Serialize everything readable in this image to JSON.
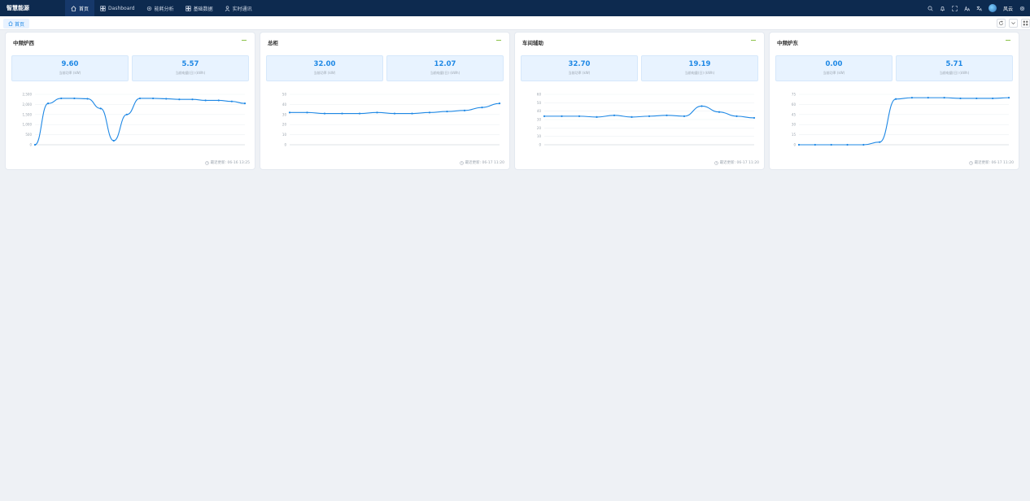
{
  "app": {
    "title": "智慧能源"
  },
  "nav": [
    {
      "label": "首页",
      "icon": "home-icon",
      "active": true
    },
    {
      "label": "Dashboard",
      "icon": "grid-icon",
      "active": false
    },
    {
      "label": "能耗分析",
      "icon": "gear-icon",
      "active": false
    },
    {
      "label": "基础数据",
      "icon": "grid-icon",
      "active": false
    },
    {
      "label": "实时通讯",
      "icon": "person-icon",
      "active": false
    }
  ],
  "topRight": {
    "icons": [
      "search-icon",
      "bell-icon",
      "fullscreen-icon",
      "font-size-icon",
      "language-icon",
      "settings-icon"
    ],
    "username": "风云"
  },
  "tabstrip": {
    "tab_label": "首页"
  },
  "colors": {
    "accent": "#1e88e5",
    "topbar": "#0d2a4f",
    "green": "#52c41a"
  },
  "cards": [
    {
      "title": "中频炉西",
      "power_value": "9.60",
      "power_label": "当前功率 (kW)",
      "energy_value": "5.57",
      "energy_label": "当前电量(日) (kWh)",
      "footer": "最近更新: 06-16 13:25",
      "chart_data": {
        "type": "line",
        "ylim": [
          0,
          2500
        ],
        "yticks": [
          "2,500",
          "2,000",
          "1,500",
          "1,000",
          "500",
          "0"
        ],
        "values": [
          0,
          2050,
          2300,
          2300,
          2280,
          1800,
          200,
          1500,
          2300,
          2300,
          2280,
          2250,
          2250,
          2200,
          2200,
          2150,
          2050
        ]
      }
    },
    {
      "title": "总柜",
      "power_value": "32.00",
      "power_label": "当前功率 (kW)",
      "energy_value": "12.07",
      "energy_label": "当前电量(日) (kWh)",
      "footer": "最近更新: 06-17 11:20",
      "chart_data": {
        "type": "line",
        "ylim": [
          0,
          50
        ],
        "yticks": [
          "50",
          "40",
          "30",
          "20",
          "10",
          "0"
        ],
        "values": [
          32,
          32,
          31,
          31,
          31,
          32,
          31,
          31,
          32,
          33,
          34,
          37,
          41
        ]
      }
    },
    {
      "title": "车间辅助",
      "power_value": "32.70",
      "power_label": "当前功率 (kW)",
      "energy_value": "19.19",
      "energy_label": "当前电量(日) (kWh)",
      "footer": "最近更新: 06-17 11:20",
      "chart_data": {
        "type": "line",
        "ylim": [
          0,
          60
        ],
        "yticks": [
          "60",
          "50",
          "40",
          "30",
          "20",
          "10",
          "0"
        ],
        "values": [
          34,
          34,
          34,
          33,
          35,
          33,
          34,
          35,
          34,
          46,
          39,
          34,
          32
        ]
      }
    },
    {
      "title": "中频炉东",
      "power_value": "0.00",
      "power_label": "当前功率 (kW)",
      "energy_value": "5.71",
      "energy_label": "当前电量(日) (kWh)",
      "footer": "最近更新: 06-17 11:20",
      "chart_data": {
        "type": "line",
        "ylim": [
          0,
          75
        ],
        "yticks": [
          "75",
          "60",
          "45",
          "30",
          "15",
          "0"
        ],
        "values": [
          0,
          0,
          0,
          0,
          0,
          4,
          68,
          70,
          70,
          70,
          69,
          69,
          69,
          70
        ]
      }
    }
  ]
}
